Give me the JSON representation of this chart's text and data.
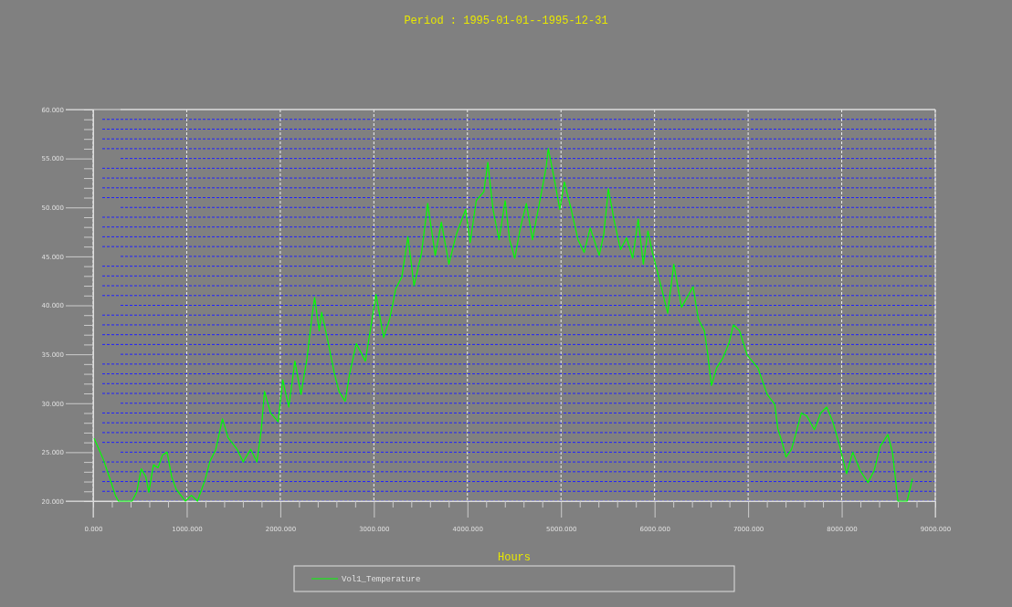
{
  "chart_data": {
    "type": "line",
    "title": "Period : 1995-01-01--1995-12-31",
    "xlabel": "Hours",
    "xlim": [
      0,
      9000
    ],
    "ylim": [
      20,
      60
    ],
    "xticks": [
      {
        "value": 0,
        "label": "0.000"
      },
      {
        "value": 200,
        "label": null
      },
      {
        "value": 400,
        "label": null
      },
      {
        "value": 600,
        "label": null
      },
      {
        "value": 800,
        "label": null
      },
      {
        "value": 1000,
        "label": "1000.000"
      },
      {
        "value": 1200,
        "label": null
      },
      {
        "value": 1400,
        "label": null
      },
      {
        "value": 1600,
        "label": null
      },
      {
        "value": 1800,
        "label": null
      },
      {
        "value": 2000,
        "label": "2000.000"
      },
      {
        "value": 2200,
        "label": null
      },
      {
        "value": 2400,
        "label": null
      },
      {
        "value": 2600,
        "label": null
      },
      {
        "value": 2800,
        "label": null
      },
      {
        "value": 3000,
        "label": "3000.000"
      },
      {
        "value": 3200,
        "label": null
      },
      {
        "value": 3400,
        "label": null
      },
      {
        "value": 3600,
        "label": null
      },
      {
        "value": 3800,
        "label": null
      },
      {
        "value": 4000,
        "label": "4000.000"
      },
      {
        "value": 4200,
        "label": null
      },
      {
        "value": 4400,
        "label": null
      },
      {
        "value": 4600,
        "label": null
      },
      {
        "value": 4800,
        "label": null
      },
      {
        "value": 5000,
        "label": "5000.000"
      },
      {
        "value": 5200,
        "label": null
      },
      {
        "value": 5400,
        "label": null
      },
      {
        "value": 5600,
        "label": null
      },
      {
        "value": 5800,
        "label": null
      },
      {
        "value": 6000,
        "label": "6000.000"
      },
      {
        "value": 6200,
        "label": null
      },
      {
        "value": 6400,
        "label": null
      },
      {
        "value": 6600,
        "label": null
      },
      {
        "value": 6800,
        "label": null
      },
      {
        "value": 7000,
        "label": "7000.000"
      },
      {
        "value": 7200,
        "label": null
      },
      {
        "value": 7400,
        "label": null
      },
      {
        "value": 7600,
        "label": null
      },
      {
        "value": 7800,
        "label": null
      },
      {
        "value": 8000,
        "label": "8000.000"
      },
      {
        "value": 8200,
        "label": null
      },
      {
        "value": 8400,
        "label": null
      },
      {
        "value": 8600,
        "label": null
      },
      {
        "value": 8800,
        "label": null
      },
      {
        "value": 9000,
        "label": "9000.000"
      }
    ],
    "yticks": [
      {
        "value": 20,
        "label": "20.000"
      },
      {
        "value": 21,
        "label": null
      },
      {
        "value": 22,
        "label": null
      },
      {
        "value": 23,
        "label": null
      },
      {
        "value": 24,
        "label": null
      },
      {
        "value": 25,
        "label": "25.000"
      },
      {
        "value": 26,
        "label": null
      },
      {
        "value": 27,
        "label": null
      },
      {
        "value": 28,
        "label": null
      },
      {
        "value": 29,
        "label": null
      },
      {
        "value": 30,
        "label": "30.000"
      },
      {
        "value": 31,
        "label": null
      },
      {
        "value": 32,
        "label": null
      },
      {
        "value": 33,
        "label": null
      },
      {
        "value": 34,
        "label": null
      },
      {
        "value": 35,
        "label": "35.000"
      },
      {
        "value": 36,
        "label": null
      },
      {
        "value": 37,
        "label": null
      },
      {
        "value": 38,
        "label": null
      },
      {
        "value": 39,
        "label": null
      },
      {
        "value": 40,
        "label": "40.000"
      },
      {
        "value": 41,
        "label": null
      },
      {
        "value": 42,
        "label": null
      },
      {
        "value": 43,
        "label": null
      },
      {
        "value": 44,
        "label": null
      },
      {
        "value": 45,
        "label": "45.000"
      },
      {
        "value": 46,
        "label": null
      },
      {
        "value": 47,
        "label": null
      },
      {
        "value": 48,
        "label": null
      },
      {
        "value": 49,
        "label": null
      },
      {
        "value": 50,
        "label": "50.000"
      },
      {
        "value": 51,
        "label": null
      },
      {
        "value": 52,
        "label": null
      },
      {
        "value": 53,
        "label": null
      },
      {
        "value": 54,
        "label": null
      },
      {
        "value": 55,
        "label": "55.000"
      },
      {
        "value": 56,
        "label": null
      },
      {
        "value": 57,
        "label": null
      },
      {
        "value": 58,
        "label": null
      },
      {
        "value": 59,
        "label": null
      },
      {
        "value": 60,
        "label": "60.000"
      }
    ],
    "grid": true,
    "legend": "bottom",
    "line_style": "solid",
    "series": [
      {
        "name": "Vol1_Temperature",
        "color": "#00ff00",
        "x": [
          10,
          107,
          172,
          237,
          270,
          416,
          465,
          514,
          563,
          595,
          644,
          693,
          741,
          790,
          839,
          888,
          937,
          985,
          1050,
          1115,
          1197,
          1246,
          1311,
          1382,
          1441,
          1538,
          1603,
          1684,
          1750,
          1798,
          1831,
          1896,
          1977,
          2026,
          2091,
          2156,
          2221,
          2286,
          2335,
          2367,
          2416,
          2442,
          2514,
          2579,
          2628,
          2693,
          2741,
          2812,
          2909,
          3023,
          3104,
          3169,
          3234,
          3299,
          3364,
          3429,
          3510,
          3575,
          3656,
          3721,
          3802,
          3883,
          3981,
          4029,
          4094,
          4175,
          4218,
          4273,
          4338,
          4403,
          4451,
          4506,
          4565,
          4630,
          4695,
          4792,
          4841,
          4864,
          4922,
          4987,
          5036,
          5101,
          5182,
          5247,
          5312,
          5409,
          5458,
          5506,
          5571,
          5636,
          5701,
          5766,
          5825,
          5880,
          5929,
          5977,
          6026,
          6091,
          6140,
          6205,
          6288,
          6412,
          6467,
          6533,
          6565,
          6608,
          6663,
          6729,
          6794,
          6843,
          6908,
          6990,
          7105,
          7203,
          7284,
          7317,
          7366,
          7405,
          7464,
          7513,
          7569,
          7627,
          7709,
          7775,
          7840,
          7905,
          7971,
          8052,
          8118,
          8199,
          8281,
          8346,
          8412,
          8493,
          8542,
          8601,
          8699,
          8739,
          8755
        ],
        "values": [
          26.4,
          24.3,
          22.5,
          20.6,
          20,
          20,
          20.9,
          23.3,
          22.5,
          20.9,
          23.7,
          23.4,
          24.7,
          25,
          22.5,
          21.2,
          20.6,
          20,
          20.6,
          20,
          22.2,
          24,
          25.3,
          28.4,
          26.5,
          25.3,
          24,
          25.3,
          24,
          27.4,
          31.2,
          29,
          28.1,
          32.4,
          29.6,
          34.3,
          30.9,
          34.6,
          38.6,
          40.8,
          37.4,
          39.3,
          36.1,
          33,
          31.2,
          30.2,
          33,
          36.1,
          34.3,
          41.1,
          36.7,
          38.6,
          41.7,
          42.9,
          47,
          42,
          45.4,
          50.4,
          45.1,
          48.5,
          44.2,
          47.3,
          49.8,
          46.4,
          50.7,
          51.6,
          54.6,
          49.8,
          46.7,
          50.7,
          46.7,
          44.8,
          47.9,
          50.4,
          46.7,
          51.6,
          54.1,
          56,
          53.2,
          49.8,
          52.6,
          50.1,
          46.7,
          45.4,
          47.9,
          45.1,
          47.3,
          51.9,
          48.5,
          45.7,
          46.9,
          44.8,
          48.8,
          44.2,
          47.6,
          45.4,
          43.6,
          41.1,
          39.2,
          44.2,
          39.8,
          41.9,
          38.6,
          37.4,
          35.2,
          31.8,
          33.6,
          34.6,
          36.1,
          38,
          37.4,
          34.9,
          33.6,
          30.9,
          29.9,
          27.4,
          25.9,
          24.5,
          25.3,
          27,
          29,
          28.7,
          27.3,
          29,
          29.6,
          28.1,
          25.9,
          22.8,
          25,
          23.1,
          21.9,
          23.1,
          25.6,
          26.8,
          25,
          20,
          20,
          21.6,
          22.3
        ]
      }
    ]
  }
}
